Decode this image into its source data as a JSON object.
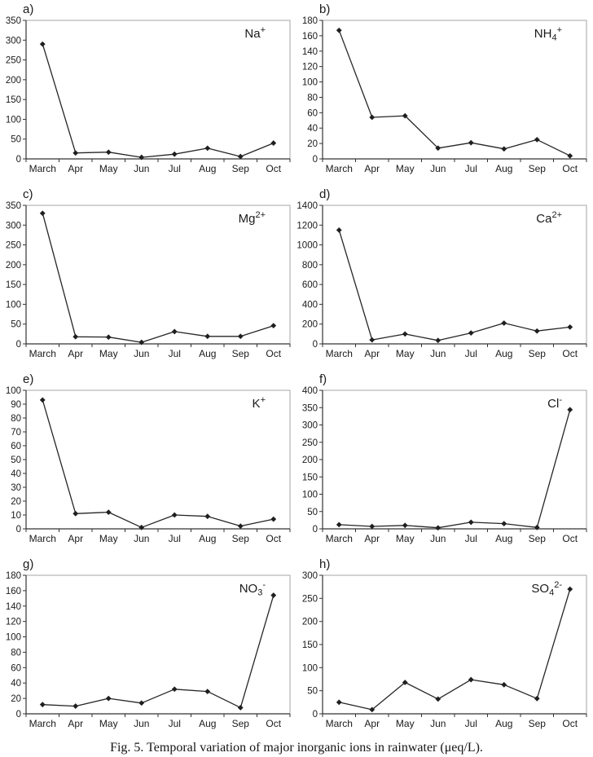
{
  "caption": "Fig. 5. Temporal variation of major inorganic ions in rainwater (μeq/L).",
  "colors": {
    "line": "#262626",
    "marker": "#1f1f1f",
    "axis": "#333333",
    "frame": "#a6a6a6",
    "text": "#1a1a1a",
    "background": "#ffffff"
  },
  "chart_data": [
    {
      "id": "a",
      "type": "line",
      "panel_label": "a)",
      "ion_label": {
        "text": "Na+",
        "parts": [
          {
            "t": "Na"
          },
          {
            "t": "+",
            "style": "sup"
          }
        ]
      },
      "categories": [
        "March",
        "Apr",
        "May",
        "Jun",
        "Jul",
        "Aug",
        "Sep",
        "Oct"
      ],
      "values": [
        290,
        15,
        17,
        4,
        12,
        27,
        6,
        40
      ],
      "ylim": [
        0,
        350
      ],
      "ytick_step": 50,
      "grid": false,
      "legend": "none",
      "xlabel": "",
      "ylabel": ""
    },
    {
      "id": "b",
      "type": "line",
      "panel_label": "b)",
      "ion_label": {
        "text": "NH4+",
        "parts": [
          {
            "t": "NH"
          },
          {
            "t": "4",
            "style": "sub"
          },
          {
            "t": "+",
            "style": "sup"
          }
        ]
      },
      "categories": [
        "March",
        "Apr",
        "May",
        "Jun",
        "Jul",
        "Aug",
        "Sep",
        "Oct"
      ],
      "values": [
        167,
        54,
        56,
        14,
        21,
        13,
        25,
        4
      ],
      "ylim": [
        0,
        180
      ],
      "ytick_step": 20,
      "grid": false,
      "legend": "none",
      "xlabel": "",
      "ylabel": ""
    },
    {
      "id": "c",
      "type": "line",
      "panel_label": "c)",
      "ion_label": {
        "text": "Mg2+",
        "parts": [
          {
            "t": "Mg"
          },
          {
            "t": "2+",
            "style": "sup"
          }
        ]
      },
      "categories": [
        "March",
        "Apr",
        "May",
        "Jun",
        "Jul",
        "Aug",
        "Sep",
        "Oct"
      ],
      "values": [
        330,
        18,
        17,
        4,
        31,
        19,
        19,
        46
      ],
      "ylim": [
        0,
        350
      ],
      "ytick_step": 50,
      "grid": false,
      "legend": "none",
      "xlabel": "",
      "ylabel": ""
    },
    {
      "id": "d",
      "type": "line",
      "panel_label": "d)",
      "ion_label": {
        "text": "Ca2+",
        "parts": [
          {
            "t": "Ca"
          },
          {
            "t": "2+",
            "style": "sup"
          }
        ]
      },
      "categories": [
        "March",
        "Apr",
        "May",
        "Jun",
        "Jul",
        "Aug",
        "Sep",
        "Oct"
      ],
      "values": [
        1150,
        40,
        100,
        35,
        110,
        210,
        130,
        170
      ],
      "ylim": [
        0,
        1400
      ],
      "ytick_step": 200,
      "grid": false,
      "legend": "none",
      "xlabel": "",
      "ylabel": ""
    },
    {
      "id": "e",
      "type": "line",
      "panel_label": "e)",
      "ion_label": {
        "text": "K+",
        "parts": [
          {
            "t": "K"
          },
          {
            "t": "+",
            "style": "sup"
          }
        ]
      },
      "categories": [
        "March",
        "Apr",
        "May",
        "Jun",
        "Jul",
        "Aug",
        "Sep",
        "Oct"
      ],
      "values": [
        93,
        11,
        12,
        1,
        10,
        9,
        2,
        7
      ],
      "ylim": [
        0,
        100
      ],
      "ytick_step": 10,
      "grid": false,
      "legend": "none",
      "xlabel": "",
      "ylabel": ""
    },
    {
      "id": "f",
      "type": "line",
      "panel_label": "f)",
      "ion_label": {
        "text": "Cl-",
        "parts": [
          {
            "t": "Cl"
          },
          {
            "t": "-",
            "style": "sup"
          }
        ]
      },
      "categories": [
        "March",
        "Apr",
        "May",
        "Jun",
        "Jul",
        "Aug",
        "Sep",
        "Oct"
      ],
      "values": [
        12,
        7,
        10,
        3,
        19,
        15,
        4,
        344
      ],
      "ylim": [
        0,
        400
      ],
      "ytick_step": 50,
      "grid": false,
      "legend": "none",
      "xlabel": "",
      "ylabel": ""
    },
    {
      "id": "g",
      "type": "line",
      "panel_label": "g)",
      "ion_label": {
        "text": "NO3-",
        "parts": [
          {
            "t": "NO"
          },
          {
            "t": "3",
            "style": "sub"
          },
          {
            "t": "-",
            "style": "sup"
          }
        ]
      },
      "categories": [
        "March",
        "Apr",
        "May",
        "Jun",
        "Jul",
        "Aug",
        "Sep",
        "Oct"
      ],
      "values": [
        12,
        10,
        20,
        14,
        32,
        29,
        8,
        154
      ],
      "ylim": [
        0,
        180
      ],
      "ytick_step": 20,
      "grid": false,
      "legend": "none",
      "xlabel": "",
      "ylabel": ""
    },
    {
      "id": "h",
      "type": "line",
      "panel_label": "h)",
      "ion_label": {
        "text": "SO42-",
        "parts": [
          {
            "t": "SO"
          },
          {
            "t": "4",
            "style": "sub"
          },
          {
            "t": "2-",
            "style": "sup"
          }
        ]
      },
      "categories": [
        "March",
        "Apr",
        "May",
        "Jun",
        "Jul",
        "Aug",
        "Sep",
        "Oct"
      ],
      "values": [
        25,
        9,
        68,
        32,
        74,
        63,
        33,
        270
      ],
      "ylim": [
        0,
        300
      ],
      "ytick_step": 50,
      "grid": false,
      "legend": "none",
      "xlabel": "",
      "ylabel": ""
    }
  ]
}
